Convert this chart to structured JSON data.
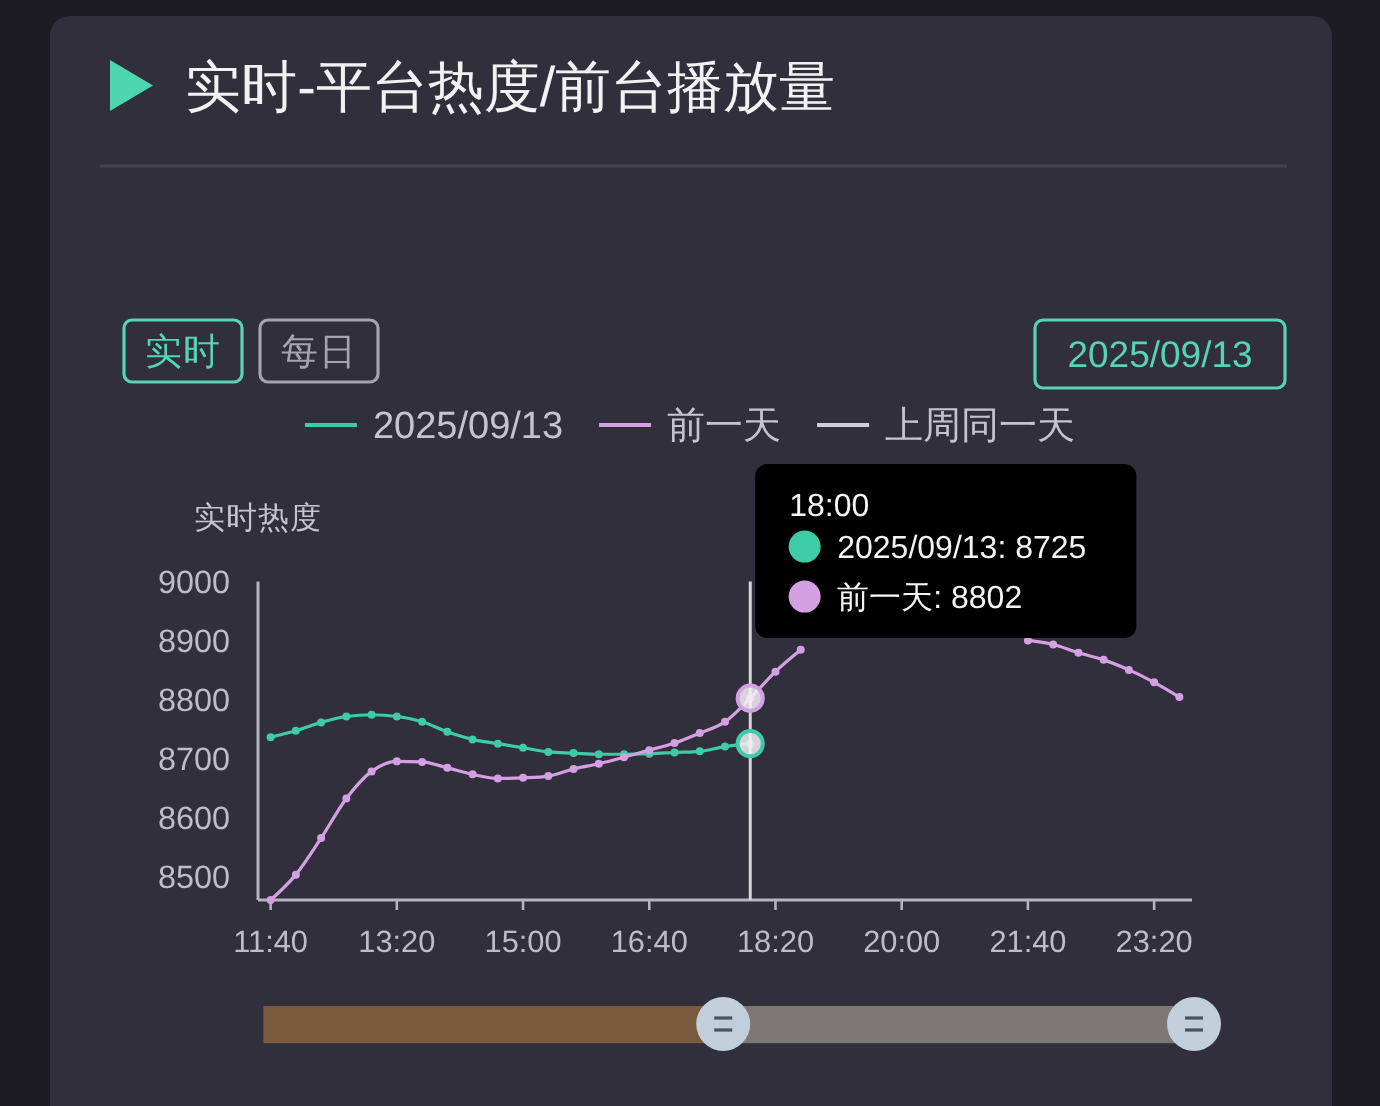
{
  "chart_data": {
    "type": "line",
    "title": "实时-平台热度/前台播放量",
    "ylabel": "实时热度",
    "x": [
      11.6667,
      12,
      12.3333,
      12.6667,
      13,
      13.3333,
      13.6667,
      14,
      14.3333,
      14.6667,
      15,
      15.3333,
      15.6667,
      16,
      16.3333,
      16.6667,
      17,
      17.3333,
      17.6667,
      18,
      18.3333,
      18.6667,
      19,
      19.3333,
      19.6667,
      20,
      20.3333,
      20.6667,
      21,
      21.3333,
      21.6667,
      22,
      22.3333,
      22.6667,
      23,
      23.3333,
      23.6667
    ],
    "xlim": [
      11.5,
      23.8333
    ],
    "xticks": [
      {
        "value": 11.6667,
        "label": "11:40"
      },
      {
        "value": 13.3333,
        "label": "13:20"
      },
      {
        "value": 15,
        "label": "15:00"
      },
      {
        "value": 16.6667,
        "label": "16:40"
      },
      {
        "value": 18.3333,
        "label": "18:20"
      },
      {
        "value": 20,
        "label": "20:00"
      },
      {
        "value": 21.6667,
        "label": "21:40"
      },
      {
        "value": 23.3333,
        "label": "23:20"
      }
    ],
    "ylim": [
      8460,
      9000
    ],
    "yticks": [
      8500,
      8600,
      8700,
      8800,
      8900,
      9000
    ],
    "series": [
      {
        "name": "2025/09/13",
        "color": "#3ecba8",
        "values": [
          8736,
          8747,
          8761,
          8771,
          8774,
          8771,
          8762,
          8745,
          8732,
          8725,
          8718,
          8711,
          8709,
          8707,
          8707,
          8708,
          8710,
          8712,
          8720,
          8725,
          null,
          null,
          null,
          null,
          null,
          null,
          null,
          null,
          null,
          null,
          null,
          null,
          null,
          null,
          null,
          null,
          null
        ]
      },
      {
        "name": "前一天",
        "color": "#d4a0e3",
        "values": [
          8460,
          8503,
          8565,
          8632,
          8678,
          8695,
          8694,
          8684,
          8673,
          8666,
          8667,
          8670,
          8682,
          8691,
          8702,
          8714,
          8726,
          8743,
          8762,
          8802,
          8847,
          8884,
          null,
          null,
          null,
          null,
          null,
          null,
          null,
          null,
          8900,
          8893,
          8879,
          8867,
          8850,
          8829,
          8804
        ]
      },
      {
        "name": "上周同一天",
        "color": "#cfcfd4",
        "values": [
          null,
          null,
          null,
          null,
          null,
          null,
          null,
          null,
          null,
          null,
          null,
          null,
          null,
          null,
          null,
          null,
          null,
          null,
          null,
          null,
          null,
          null,
          null,
          null,
          null,
          null,
          null,
          null,
          null,
          null,
          null,
          null,
          null,
          null,
          null,
          null,
          null
        ]
      }
    ],
    "legend": "top",
    "marker": "circle",
    "ref_lines": [
      {
        "axis": "x",
        "value": 18,
        "label": "18:00",
        "color": "#d4d4d8"
      }
    ],
    "annotations": [
      "实时",
      "每日",
      "2025/09/13",
      "2025/09/13: 8725",
      "前一天: 8802"
    ]
  }
}
